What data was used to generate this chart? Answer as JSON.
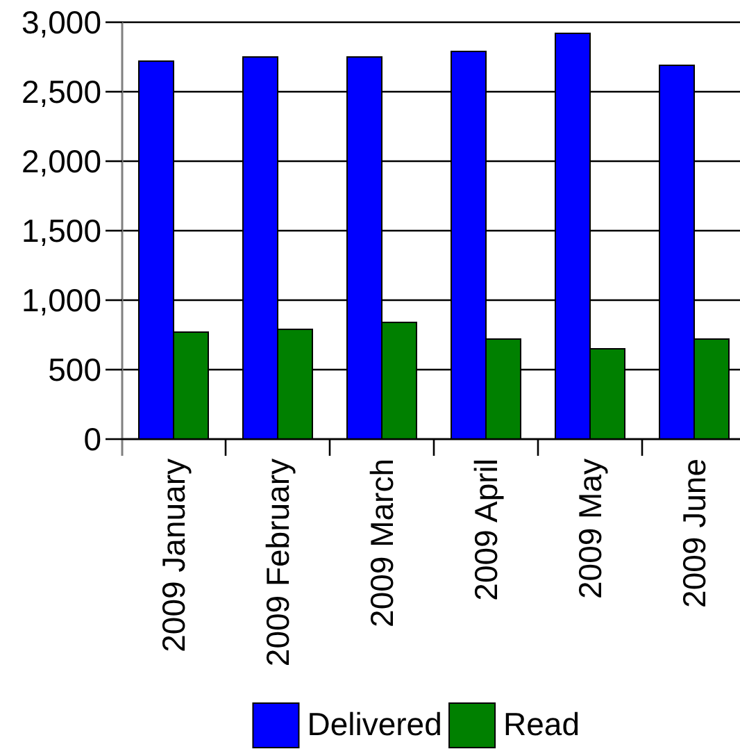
{
  "chart_data": {
    "type": "bar",
    "categories": [
      "2009 January",
      "2009 February",
      "2009 March",
      "2009 April",
      "2009 May",
      "2009 June"
    ],
    "series": [
      {
        "name": "Delivered",
        "color": "#0000ff",
        "values": [
          2720,
          2750,
          2750,
          2790,
          2920,
          2690
        ]
      },
      {
        "name": "Read",
        "color": "#008000",
        "values": [
          770,
          790,
          840,
          720,
          650,
          720
        ]
      }
    ],
    "ylim": [
      0,
      3000
    ],
    "yticks": [
      0,
      500,
      {
        "value": 1000,
        "label": "1,000"
      },
      {
        "value": 1500,
        "label": "1,500"
      },
      {
        "value": 2000,
        "label": "2,000"
      },
      {
        "value": 2500,
        "label": "2,500"
      },
      {
        "value": 3000,
        "label": "3,000"
      }
    ],
    "grid": "y",
    "legend": "bottom"
  }
}
